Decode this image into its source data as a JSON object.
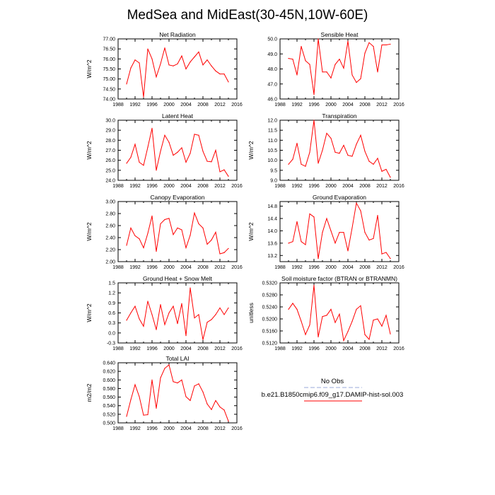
{
  "title": "MedSea and MidEast(30-45N,10W-60E)",
  "colors": {
    "series": "#ff0000",
    "obs": "#9aa8d8",
    "axis": "#000000"
  },
  "x_ticks": [
    1988,
    1992,
    1996,
    2000,
    2004,
    2008,
    2012,
    2016
  ],
  "legend": {
    "obs_label": "No Obs",
    "model_label": "b.e21.B1850cmip6.f09_g17.DAMIP-hist-sol.003"
  },
  "chart_data": [
    {
      "type": "line",
      "title": "Net Radiation",
      "ylabel": "W/m^2",
      "xlim": [
        1988,
        2016
      ],
      "ylim": [
        74.0,
        77.0
      ],
      "y_ticks": [
        "74.00",
        "74.50",
        "75.00",
        "75.50",
        "76.00",
        "76.50",
        "77.00"
      ],
      "x": [
        1990,
        1991,
        1992,
        1993,
        1994,
        1995,
        1996,
        1997,
        1998,
        1999,
        2000,
        2001,
        2002,
        2003,
        2004,
        2005,
        2006,
        2007,
        2008,
        2009,
        2010,
        2011,
        2012,
        2013,
        2014
      ],
      "series": [
        {
          "name": "b.e21.B1850cmip6.f09_g17.DAMIP-hist-sol.003",
          "values": [
            74.75,
            75.55,
            75.95,
            75.8,
            74.1,
            76.5,
            76.0,
            75.1,
            75.75,
            76.55,
            75.7,
            75.65,
            75.75,
            76.15,
            75.5,
            75.85,
            76.1,
            76.35,
            75.7,
            75.95,
            75.65,
            75.4,
            75.25,
            75.25,
            74.85
          ]
        }
      ]
    },
    {
      "type": "line",
      "title": "Sensible Heat",
      "ylabel": "",
      "xlim": [
        1988,
        2016
      ],
      "ylim": [
        46.0,
        50.0
      ],
      "y_ticks": [
        "46.0",
        "47.0",
        "48.0",
        "49.0",
        "50.0"
      ],
      "x": [
        1990,
        1991,
        1992,
        1993,
        1994,
        1995,
        1996,
        1997,
        1998,
        1999,
        2000,
        2001,
        2002,
        2003,
        2004,
        2005,
        2006,
        2007,
        2008,
        2009,
        2010,
        2011,
        2012,
        2013,
        2014
      ],
      "series": [
        {
          "name": "b.e21.B1850cmip6.f09_g17.DAMIP-hist-sol.003",
          "values": [
            48.7,
            48.65,
            47.6,
            49.5,
            48.55,
            48.3,
            46.3,
            50.0,
            47.8,
            47.8,
            47.4,
            48.3,
            48.65,
            48.05,
            49.85,
            47.6,
            47.1,
            47.35,
            49.05,
            49.75,
            49.5,
            47.8,
            49.6,
            49.6,
            49.65
          ]
        }
      ]
    },
    {
      "type": "line",
      "title": "Latent Heat",
      "ylabel": "W/m^2",
      "xlim": [
        1988,
        2016
      ],
      "ylim": [
        24.0,
        30.0
      ],
      "y_ticks": [
        "24.0",
        "25.0",
        "26.0",
        "27.0",
        "28.0",
        "29.0",
        "30.0"
      ],
      "x": [
        1990,
        1991,
        1992,
        1993,
        1994,
        1995,
        1996,
        1997,
        1998,
        1999,
        2000,
        2001,
        2002,
        2003,
        2004,
        2005,
        2006,
        2007,
        2008,
        2009,
        2010,
        2011,
        2012,
        2013,
        2014
      ],
      "series": [
        {
          "name": "b.e21.B1850cmip6.f09_g17.DAMIP-hist-sol.003",
          "values": [
            25.7,
            26.3,
            27.6,
            25.8,
            25.5,
            27.3,
            29.2,
            25.0,
            26.9,
            28.5,
            27.8,
            26.5,
            26.8,
            27.25,
            25.8,
            26.7,
            28.6,
            28.5,
            26.9,
            25.9,
            25.85,
            27.0,
            24.85,
            25.05,
            24.4
          ]
        }
      ]
    },
    {
      "type": "line",
      "title": "Transpiration",
      "ylabel": "W/m^2",
      "xlim": [
        1988,
        2016
      ],
      "ylim": [
        9.0,
        12.0
      ],
      "y_ticks": [
        "9.0",
        "9.5",
        "10.0",
        "10.5",
        "11.0",
        "11.5",
        "12.0"
      ],
      "x": [
        1990,
        1991,
        1992,
        1993,
        1994,
        1995,
        1996,
        1997,
        1998,
        1999,
        2000,
        2001,
        2002,
        2003,
        2004,
        2005,
        2006,
        2007,
        2008,
        2009,
        2010,
        2011,
        2012,
        2013,
        2014
      ],
      "series": [
        {
          "name": "b.e21.B1850cmip6.f09_g17.DAMIP-hist-sol.003",
          "values": [
            9.8,
            10.05,
            10.85,
            9.8,
            9.7,
            10.4,
            12.0,
            9.85,
            10.5,
            11.35,
            11.1,
            10.4,
            10.35,
            10.75,
            10.25,
            10.2,
            10.8,
            11.25,
            10.45,
            9.95,
            9.8,
            10.1,
            9.45,
            9.55,
            9.15
          ]
        }
      ]
    },
    {
      "type": "line",
      "title": "Canopy Evaporation",
      "ylabel": "W/m^2",
      "xlim": [
        1988,
        2016
      ],
      "ylim": [
        2.0,
        3.0
      ],
      "y_ticks": [
        "2.00",
        "2.20",
        "2.40",
        "2.60",
        "2.80",
        "3.00"
      ],
      "x": [
        1990,
        1991,
        1992,
        1993,
        1994,
        1995,
        1996,
        1997,
        1998,
        1999,
        2000,
        2001,
        2002,
        2003,
        2004,
        2005,
        2006,
        2007,
        2008,
        2009,
        2010,
        2011,
        2012,
        2013,
        2014
      ],
      "series": [
        {
          "name": "b.e21.B1850cmip6.f09_g17.DAMIP-hist-sol.003",
          "values": [
            2.27,
            2.56,
            2.43,
            2.38,
            2.23,
            2.47,
            2.76,
            2.17,
            2.63,
            2.7,
            2.72,
            2.45,
            2.56,
            2.53,
            2.23,
            2.44,
            2.81,
            2.63,
            2.56,
            2.29,
            2.36,
            2.49,
            2.13,
            2.15,
            2.22
          ]
        }
      ]
    },
    {
      "type": "line",
      "title": "Ground Evaporation",
      "ylabel": "W/m^2",
      "xlim": [
        1988,
        2016
      ],
      "ylim": [
        13.0,
        14.95
      ],
      "y_ticks": [
        "13.2",
        "13.6",
        "14.0",
        "14.4",
        "14.8"
      ],
      "x": [
        1990,
        1991,
        1992,
        1993,
        1994,
        1995,
        1996,
        1997,
        1998,
        1999,
        2000,
        2001,
        2002,
        2003,
        2004,
        2005,
        2006,
        2007,
        2008,
        2009,
        2010,
        2011,
        2012,
        2013,
        2014
      ],
      "series": [
        {
          "name": "b.e21.B1850cmip6.f09_g17.DAMIP-hist-sol.003",
          "values": [
            13.6,
            13.65,
            14.3,
            13.65,
            13.55,
            14.55,
            14.45,
            13.1,
            13.95,
            14.4,
            14.0,
            13.6,
            13.95,
            13.95,
            13.35,
            14.1,
            14.9,
            14.65,
            13.95,
            13.7,
            13.75,
            14.5,
            13.25,
            13.3,
            13.1
          ]
        }
      ]
    },
    {
      "type": "line",
      "title": "Ground Heat + Snow Melt",
      "ylabel": "W/m^2",
      "xlim": [
        1988,
        2016
      ],
      "ylim": [
        -0.3,
        1.5
      ],
      "y_ticks": [
        "-0.3",
        "0.0",
        "0.3",
        "0.6",
        "0.9",
        "1.2",
        "1.5"
      ],
      "x": [
        1990,
        1991,
        1992,
        1993,
        1994,
        1995,
        1996,
        1997,
        1998,
        1999,
        2000,
        2001,
        2002,
        2003,
        2004,
        2005,
        2006,
        2007,
        2008,
        2009,
        2010,
        2011,
        2012,
        2013,
        2014
      ],
      "series": [
        {
          "name": "b.e21.B1850cmip6.f09_g17.DAMIP-hist-sol.003",
          "values": [
            0.38,
            0.6,
            0.8,
            0.42,
            0.2,
            0.95,
            0.55,
            0.1,
            0.85,
            0.25,
            0.6,
            0.8,
            0.28,
            0.88,
            -0.08,
            1.35,
            0.45,
            0.55,
            -0.2,
            0.32,
            0.4,
            0.55,
            0.75,
            0.55,
            0.75
          ]
        }
      ]
    },
    {
      "type": "line",
      "title": "Soil moisture factor (BTRAN or BTRANMN)",
      "ylabel": "unitless",
      "xlim": [
        1988,
        2016
      ],
      "ylim": [
        0.512,
        0.532
      ],
      "y_ticks": [
        "0.5120",
        "0.5160",
        "0.5200",
        "0.5240",
        "0.5280",
        "0.5320"
      ],
      "x": [
        1990,
        1991,
        1992,
        1993,
        1994,
        1995,
        1996,
        1997,
        1998,
        1999,
        2000,
        2001,
        2002,
        2003,
        2004,
        2005,
        2006,
        2007,
        2008,
        2009,
        2010,
        2011,
        2012,
        2013,
        2014
      ],
      "series": [
        {
          "name": "b.e21.B1850cmip6.f09_g17.DAMIP-hist-sol.003",
          "values": [
            0.5232,
            0.5252,
            0.5232,
            0.5192,
            0.5148,
            0.518,
            0.5312,
            0.514,
            0.5208,
            0.5212,
            0.5232,
            0.5188,
            0.5216,
            0.5128,
            0.5158,
            0.5192,
            0.5232,
            0.5244,
            0.5148,
            0.5132,
            0.5196,
            0.52,
            0.5176,
            0.5212,
            0.515
          ]
        }
      ]
    },
    {
      "type": "line",
      "title": "Total LAI",
      "ylabel": "m2/m2",
      "xlim": [
        1988,
        2016
      ],
      "ylim": [
        0.5,
        0.64
      ],
      "y_ticks": [
        "0.500",
        "0.520",
        "0.540",
        "0.560",
        "0.580",
        "0.600",
        "0.620",
        "0.640"
      ],
      "x": [
        1990,
        1991,
        1992,
        1993,
        1994,
        1995,
        1996,
        1997,
        1998,
        1999,
        2000,
        2001,
        2002,
        2003,
        2004,
        2005,
        2006,
        2007,
        2008,
        2009,
        2010,
        2011,
        2012,
        2013,
        2014
      ],
      "series": [
        {
          "name": "b.e21.B1850cmip6.f09_g17.DAMIP-hist-sol.003",
          "values": [
            0.515,
            0.554,
            0.589,
            0.561,
            0.518,
            0.519,
            0.6,
            0.534,
            0.605,
            0.627,
            0.635,
            0.596,
            0.593,
            0.6,
            0.561,
            0.552,
            0.586,
            0.591,
            0.572,
            0.544,
            0.531,
            0.552,
            0.537,
            0.53,
            0.504
          ]
        }
      ]
    }
  ]
}
